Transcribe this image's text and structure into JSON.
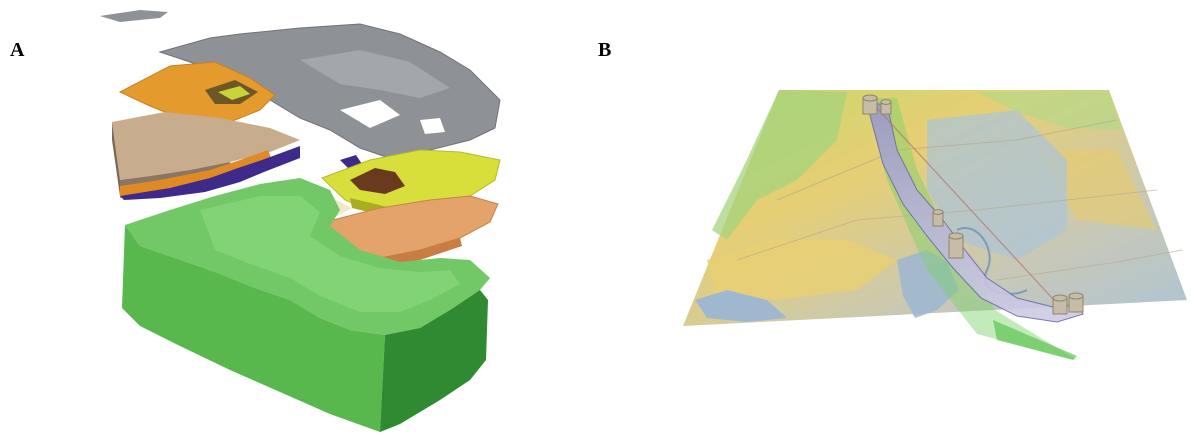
{
  "figure": {
    "panels": [
      {
        "label": "A",
        "content": "exploded-geologic-block-model"
      },
      {
        "label": "B",
        "content": "terrain-surface-with-tunnel-alignment"
      }
    ]
  },
  "colors": {
    "green_block": "#58b84e",
    "green_dark": "#2f8a32",
    "gray_layer": "#8e9196",
    "orange_layer": "#e59a2e",
    "tan_layer": "#b79a79",
    "purple_layer": "#3d2a8a",
    "yellow_layer": "#d8df3a",
    "brown_patch": "#6a3a1e",
    "salmon_layer": "#e3a36a",
    "terrain_yellow": "#e6cf74",
    "terrain_blue": "#aec4d6",
    "terrain_green": "#a6d37e"
  }
}
